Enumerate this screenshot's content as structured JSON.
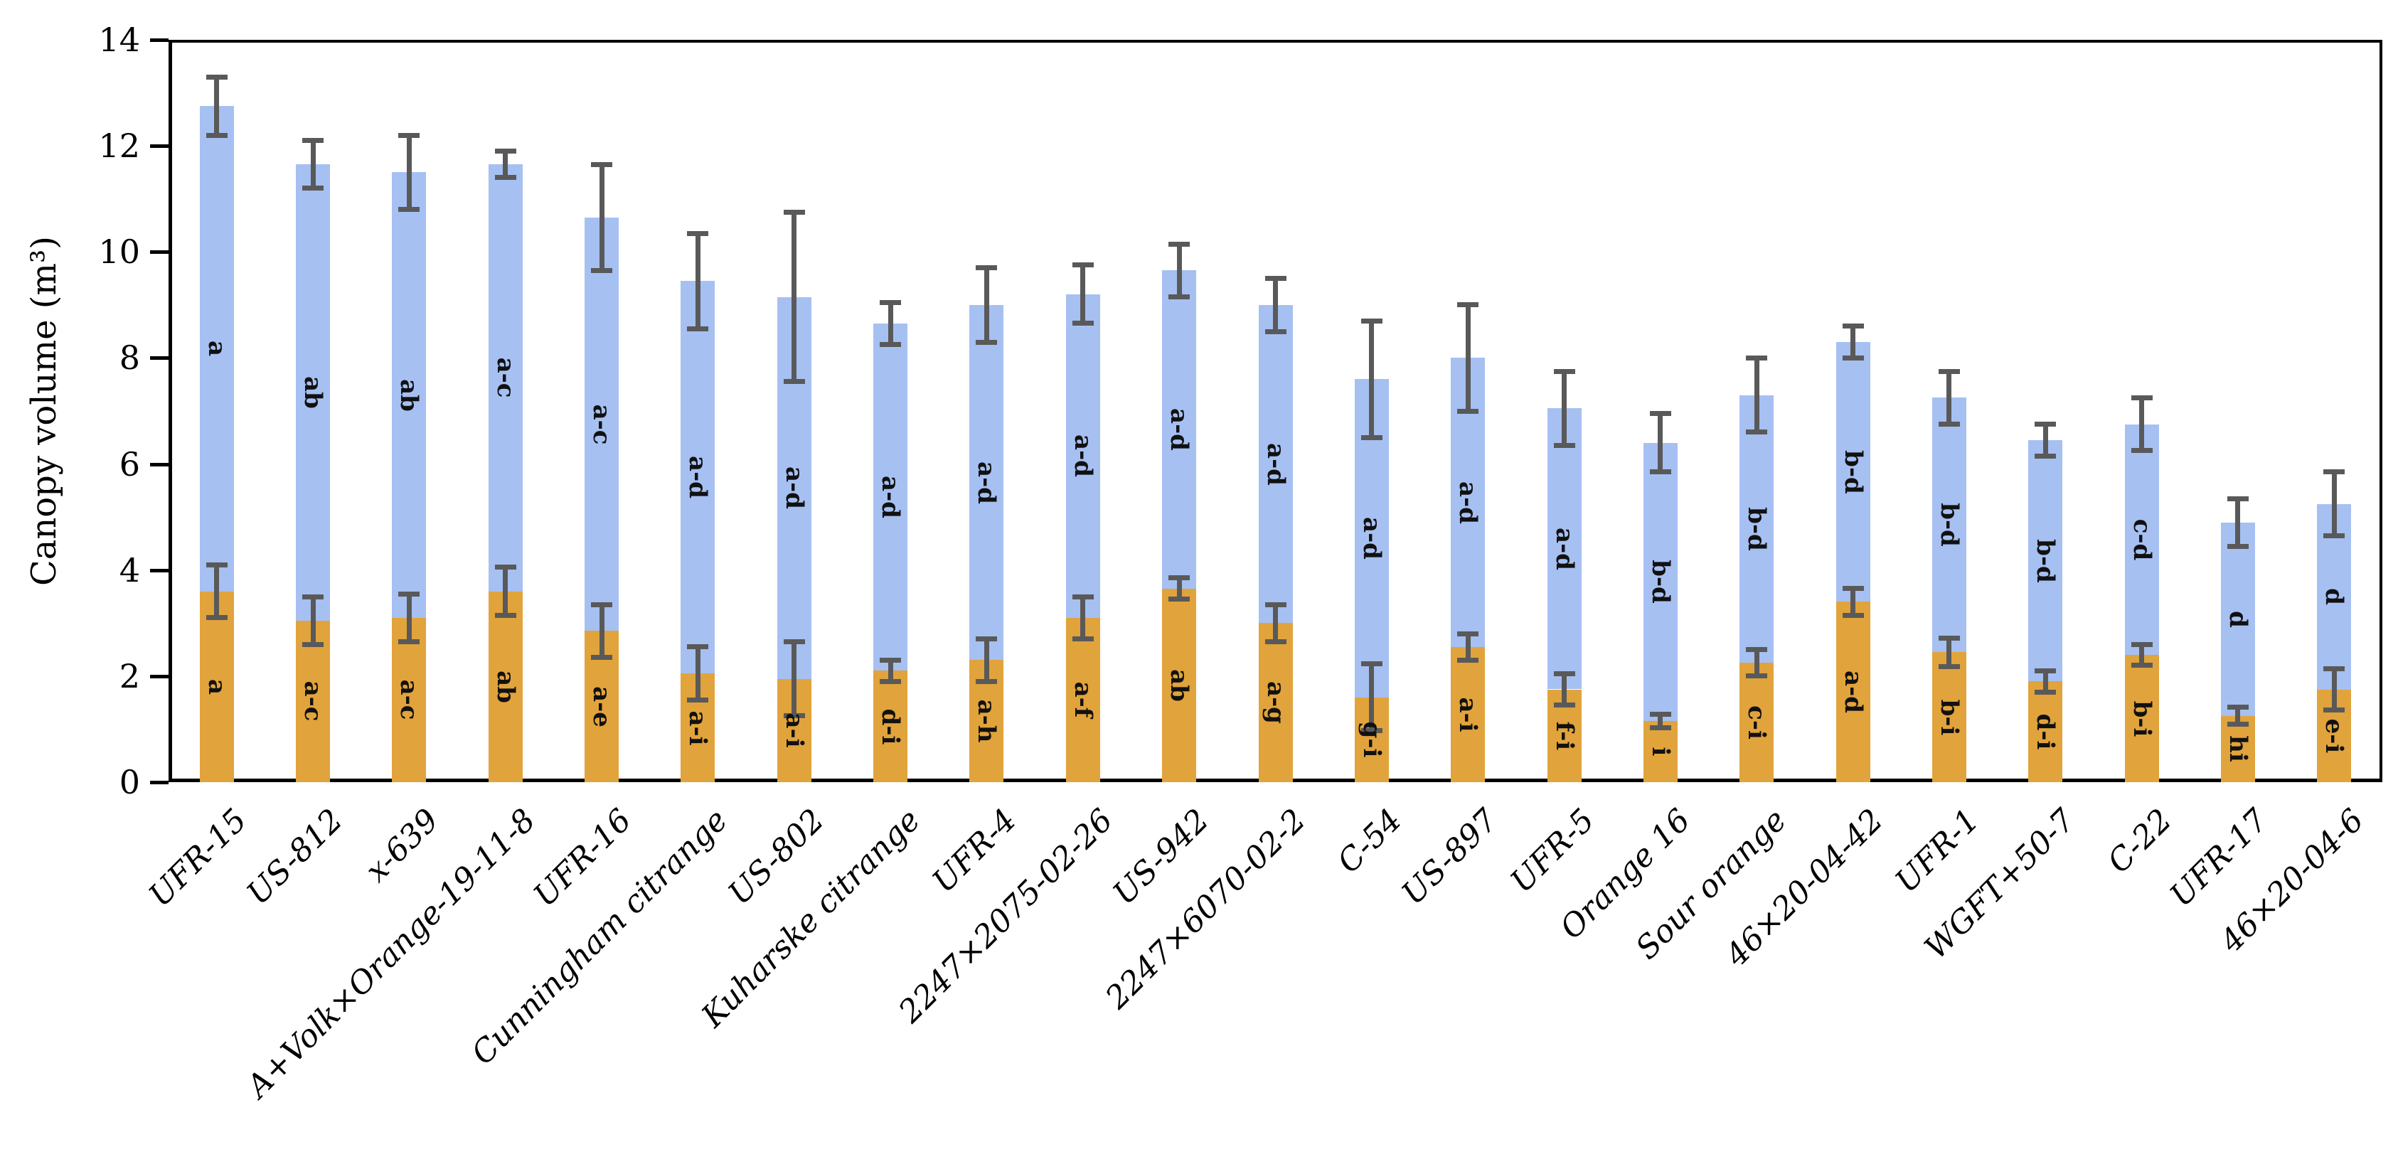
{
  "chart_data": {
    "type": "bar",
    "stacked": true,
    "title": "",
    "xlabel": "",
    "ylabel": "Canopy volume (m³)",
    "ylim": [
      0,
      14
    ],
    "yticks": [
      0,
      2,
      4,
      6,
      8,
      10,
      12,
      14
    ],
    "grid": false,
    "legend": "none",
    "colors": {
      "bottom_segment": "#E1A33B",
      "top_segment": "#A6C0F2",
      "error_bar": "#595959",
      "axis": "#000000",
      "label_text": "#111111"
    },
    "categories": [
      "UFR-15",
      "US-812",
      "x-639",
      "A+Volk×Orange-19-11-8",
      "UFR-16",
      "Cunningham citrange",
      "US-802",
      "Kuharske citrange",
      "UFR-4",
      "2247×2075-02-26",
      "US-942",
      "2247×6070-02-2",
      "C-54",
      "US-897",
      "UFR-5",
      "Orange 16",
      "Sour orange",
      "46×20-04-42",
      "UFR-1",
      "WGFT+50-7",
      "C-22",
      "UFR-17",
      "46×20-04-6"
    ],
    "series": [
      {
        "id": "bottom-orange-segment",
        "values": [
          3.6,
          3.05,
          3.1,
          3.6,
          2.85,
          2.05,
          1.95,
          2.1,
          2.3,
          3.1,
          3.65,
          3.0,
          1.6,
          2.55,
          1.75,
          1.15,
          2.25,
          3.4,
          2.45,
          1.9,
          2.4,
          1.25,
          1.75
        ],
        "errors": [
          0.5,
          0.45,
          0.45,
          0.45,
          0.5,
          0.5,
          0.7,
          0.2,
          0.4,
          0.4,
          0.2,
          0.35,
          0.63,
          0.25,
          0.3,
          0.13,
          0.25,
          0.25,
          0.27,
          0.2,
          0.2,
          0.16,
          0.39
        ],
        "labels": [
          "a",
          "a-c",
          "a-c",
          "ab",
          "a-e",
          "a-i",
          "a-i",
          "d-i",
          "a-h",
          "a-f",
          "ab",
          "a-g",
          "g-i",
          "a-i",
          "f-i",
          "i",
          "c-i",
          "a-d",
          "b-i",
          "d-i",
          "b-i",
          "hi",
          "e-i"
        ]
      },
      {
        "id": "top-blue-segment",
        "totals": [
          12.75,
          11.65,
          11.5,
          11.65,
          10.65,
          9.45,
          9.15,
          8.65,
          9.0,
          9.2,
          9.65,
          9.0,
          7.6,
          8.0,
          7.05,
          6.4,
          7.3,
          8.3,
          7.25,
          6.45,
          6.75,
          4.9,
          5.25
        ],
        "errors": [
          0.55,
          0.45,
          0.7,
          0.25,
          1.0,
          0.9,
          1.6,
          0.4,
          0.7,
          0.55,
          0.5,
          0.5,
          1.1,
          1.0,
          0.7,
          0.55,
          0.7,
          0.3,
          0.5,
          0.3,
          0.5,
          0.45,
          0.6
        ],
        "labels": [
          "a",
          "ab",
          "ab",
          "a-c",
          "a-c",
          "a-d",
          "a-d",
          "a-d",
          "a-d",
          "a-d",
          "a-d",
          "a-d",
          "a-d",
          "a-d",
          "a-d",
          "b-d",
          "b-d",
          "b-d",
          "b-d",
          "b-d",
          "c-d",
          "d",
          "d"
        ]
      }
    ]
  }
}
